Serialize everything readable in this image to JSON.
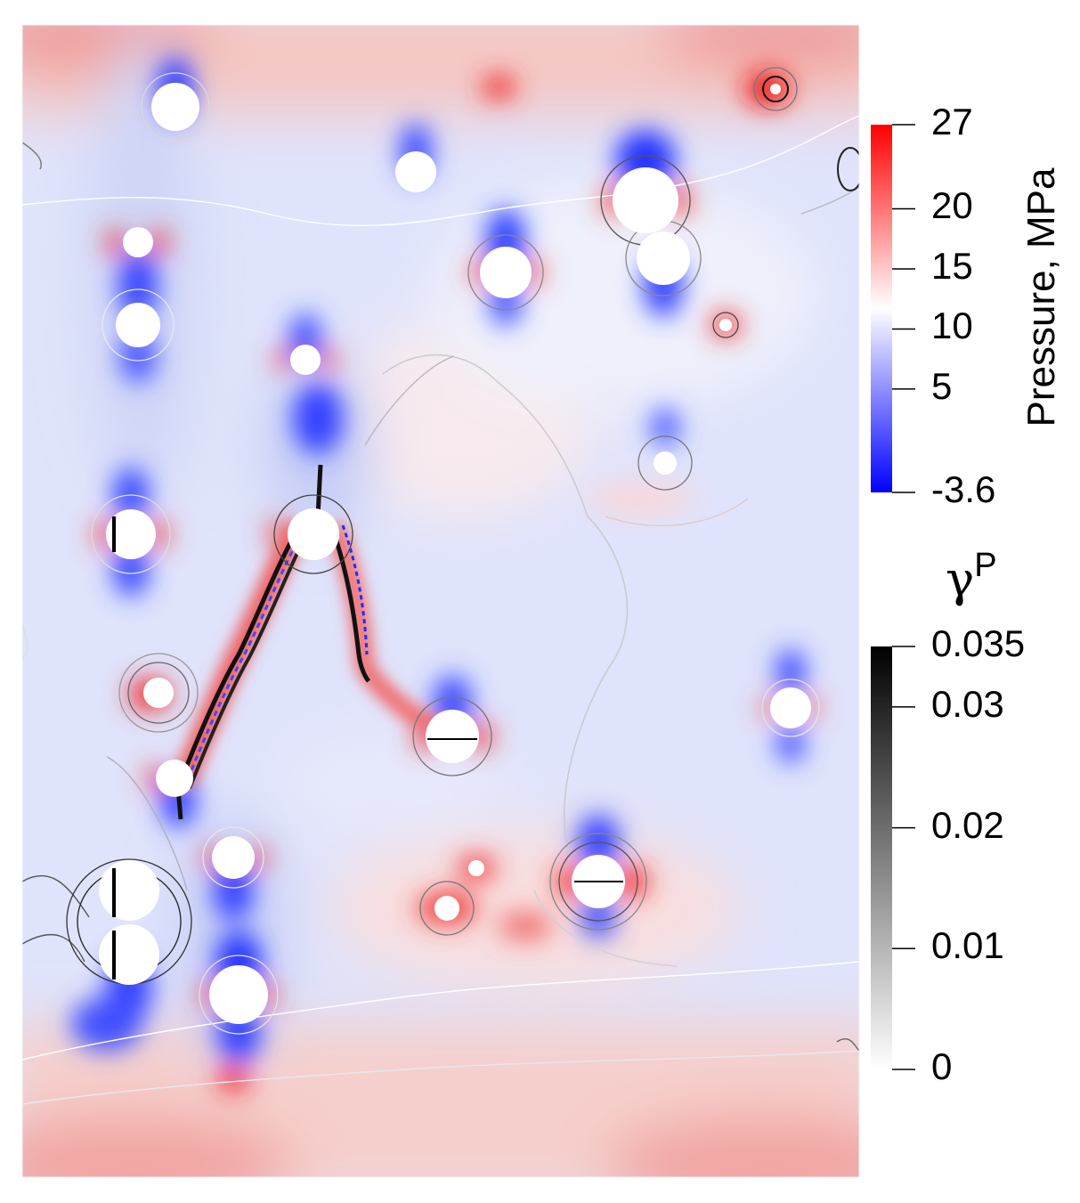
{
  "chart_data": {
    "type": "heatmap",
    "description_free": true,
    "colorbars": [
      {
        "key": "pressure",
        "title": "Pressure, MPa",
        "min": -3.6,
        "max": 27,
        "colors": [
          "#0000ff",
          "#ffffff",
          "#ff0000"
        ],
        "ticks": [
          {
            "value": 27,
            "label": "27"
          },
          {
            "value": 20,
            "label": "20"
          },
          {
            "value": 15,
            "label": "15"
          },
          {
            "value": 10,
            "label": "10"
          },
          {
            "value": 5,
            "label": "5"
          },
          {
            "value": -3.6,
            "label": "-3.6"
          }
        ]
      },
      {
        "key": "plastic_strain",
        "title_symbol": "γ",
        "title_superscript": "P",
        "min": 0,
        "max": 0.035,
        "colors": [
          "#ffffff",
          "#000000"
        ],
        "ticks": [
          {
            "value": 0.035,
            "label": "0.035"
          },
          {
            "value": 0.03,
            "label": "0.03"
          },
          {
            "value": 0.02,
            "label": "0.02"
          },
          {
            "value": 0.01,
            "label": "0.01"
          },
          {
            "value": 0,
            "label": "0"
          }
        ]
      }
    ]
  }
}
